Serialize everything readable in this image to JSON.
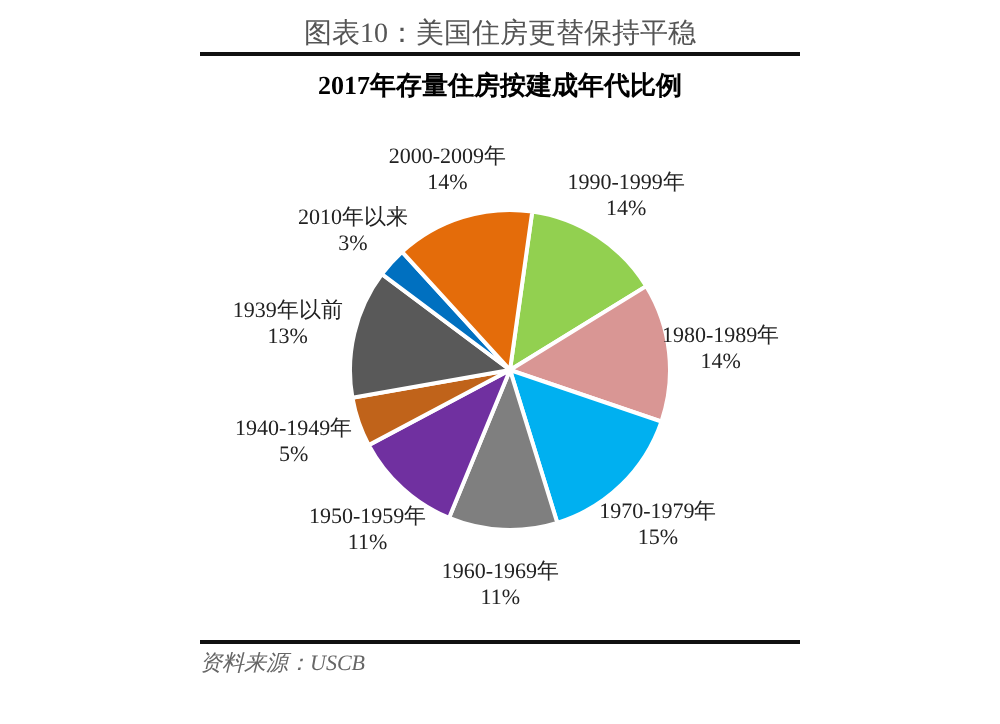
{
  "chart_data": {
    "type": "pie",
    "title": "图表10：美国住房更替保持平稳",
    "subtitle": "2017年存量住房按建成年代比例",
    "categories": [
      "1990-1999年",
      "1980-1989年",
      "1970-1979年",
      "1960-1969年",
      "1950-1959年",
      "1940-1949年",
      "1939年以前",
      "2010年以来",
      "2000-2009年"
    ],
    "values": [
      14,
      14,
      15,
      11,
      11,
      5,
      13,
      3,
      14
    ],
    "value_labels": [
      "14%",
      "14%",
      "15%",
      "11%",
      "11%",
      "5%",
      "13%",
      "3%",
      "14%"
    ],
    "colors": [
      "#92d050",
      "#d99694",
      "#00b0f0",
      "#7f7f7f",
      "#7030a0",
      "#c0631a",
      "#595959",
      "#0070c0",
      "#e46c0a"
    ],
    "legend": false,
    "annotations": [
      "资料来源：USCB"
    ]
  }
}
